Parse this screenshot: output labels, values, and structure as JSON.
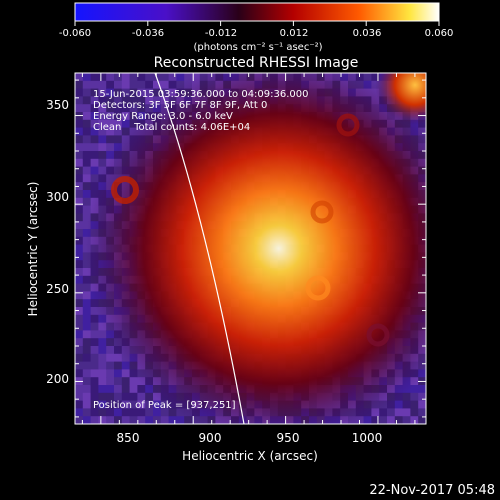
{
  "colorbar": {
    "ticks": [
      "-0.060",
      "-0.036",
      "-0.012",
      "0.012",
      "0.036",
      "0.060"
    ],
    "units": "(photons cm⁻² s⁻¹ asec⁻²)",
    "colors": [
      "#1a1aff",
      "#5a0aa0",
      "#3a0020",
      "#c00000",
      "#ff6a00",
      "#ffee40",
      "#ffffff"
    ]
  },
  "image": {
    "title": "Reconstructed RHESSI Image",
    "time_range": "15-Jun-2015 03:59:36.000 to 04:09:36.000",
    "detectors": "Detectors: 3F 5F 6F 7F 8F 9F, Att 0",
    "energy": "Energy Range: 3.0 - 6.0 keV",
    "clean_line": "Clean    Total counts: 4.06E+04",
    "peak": "Position of Peak = [937,251]",
    "x_label": "Heliocentric X (arcsec)",
    "y_label": "Heliocentric Y (arcsec)",
    "x_ticks": [
      "850",
      "900",
      "950",
      "1000"
    ],
    "y_ticks": [
      "200",
      "250",
      "300",
      "350"
    ],
    "x_range": [
      836,
      1026
    ],
    "y_range": [
      176,
      374
    ]
  },
  "footer": {
    "date": "22-Nov-2017 05:48"
  }
}
